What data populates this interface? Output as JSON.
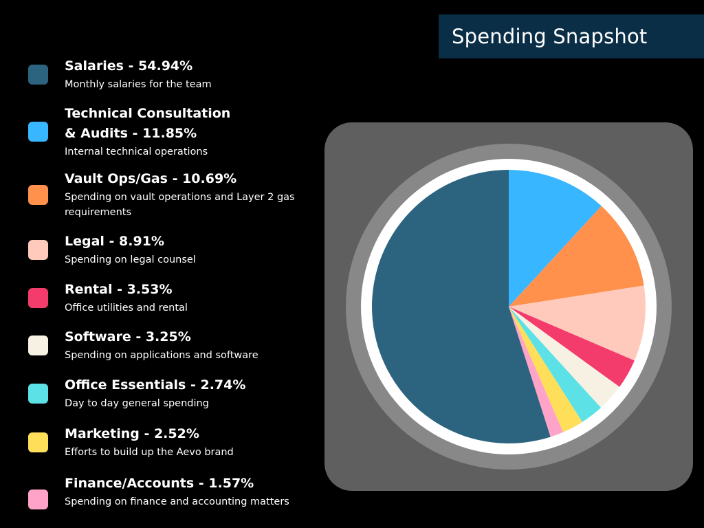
{
  "title": "Spending Snapshot",
  "legend": [
    {
      "label_lines": [
        "Salaries - 54.94%"
      ],
      "desc": "Monthly salaries for the team",
      "color": "#2c6480"
    },
    {
      "label_lines": [
        "Technical Consultation",
        "& Audits - 11.85%"
      ],
      "desc": "Internal technical operations",
      "color": "#38b6ff"
    },
    {
      "label_lines": [
        "Vault Ops/Gas - 10.69%"
      ],
      "desc": "Spending on vault operations and Layer 2 gas requirements",
      "color": "#ff914d"
    },
    {
      "label_lines": [
        "Legal - 8.91%"
      ],
      "desc": "Spending on legal counsel",
      "color": "#ffcabb"
    },
    {
      "label_lines": [
        "Rental - 3.53%"
      ],
      "desc": "Office utilities and rental",
      "color": "#f43c6c"
    },
    {
      "label_lines": [
        "Software - 3.25%"
      ],
      "desc": "Spending on applications and software",
      "color": "#f7f1e3"
    },
    {
      "label_lines": [
        "Office Essentials - 2.74%"
      ],
      "desc": "Day to day general spending",
      "color": "#5ce1e6"
    },
    {
      "label_lines": [
        "Marketing - 2.52%"
      ],
      "desc": "Efforts to build up the Aevo brand",
      "color": "#ffde59"
    },
    {
      "label_lines": [
        "Finance/Accounts - 1.57%"
      ],
      "desc": "Spending on finance and accounting matters",
      "color": "#ffa3c9"
    }
  ],
  "chart_data": {
    "type": "pie",
    "title": "Spending Snapshot",
    "categories": [
      "Salaries",
      "Technical Consultation & Audits",
      "Vault Ops/Gas",
      "Legal",
      "Rental",
      "Software",
      "Office Essentials",
      "Marketing",
      "Finance/Accounts"
    ],
    "values": [
      54.94,
      11.85,
      10.69,
      8.91,
      3.53,
      3.25,
      2.74,
      2.52,
      1.57
    ],
    "unit": "%",
    "start_angle": "12 o'clock",
    "draw_order": [
      "Technical Consultation & Audits",
      "Vault Ops/Gas",
      "Legal",
      "Rental",
      "Software",
      "Office Essentials",
      "Marketing",
      "Finance/Accounts",
      "Salaries"
    ],
    "direction": "clockwise",
    "colors": [
      "#2c6480",
      "#38b6ff",
      "#ff914d",
      "#ffcabb",
      "#f43c6c",
      "#f7f1e3",
      "#5ce1e6",
      "#ffde59",
      "#ffa3c9"
    ],
    "legend_position": "left"
  },
  "style": {
    "background": "#000000",
    "title_bg": "#0b2e47",
    "panel_bg": "#5f5f5f",
    "outer_ring": "#888888",
    "inner_ring": "#ffffff"
  }
}
